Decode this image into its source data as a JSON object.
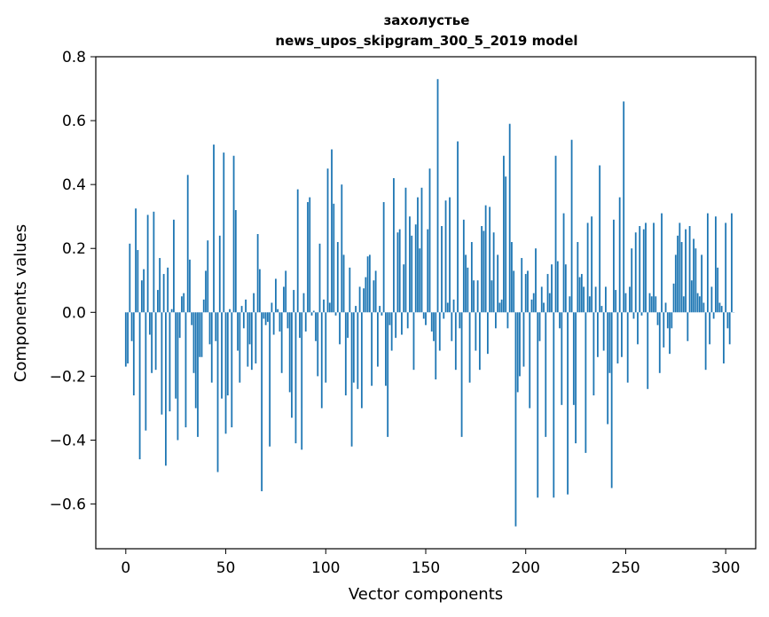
{
  "chart_data": {
    "type": "bar",
    "title": "захолустье",
    "subtitle": "news_upos_skipgram_300_5_2019 model",
    "xlabel": "Vector components",
    "ylabel": "Components values",
    "xlim": [
      -15,
      315
    ],
    "ylim": [
      -0.74,
      0.8
    ],
    "xticks": [
      0,
      50,
      100,
      150,
      200,
      250,
      300
    ],
    "yticks": [
      -0.6,
      -0.4,
      -0.2,
      0.0,
      0.2,
      0.4,
      0.6,
      0.8
    ],
    "xtick_labels": [
      "0",
      "50",
      "100",
      "150",
      "200",
      "250",
      "300"
    ],
    "ytick_labels": [
      "−0.6",
      "−0.4",
      "−0.2",
      "0.0",
      "0.2",
      "0.4",
      "0.6",
      "0.8"
    ],
    "grid": false,
    "bar_color": "#1f77b4",
    "values": [
      -0.17,
      -0.16,
      0.215,
      -0.09,
      -0.26,
      0.325,
      0.195,
      -0.46,
      0.1,
      0.135,
      -0.37,
      0.305,
      -0.07,
      -0.19,
      0.315,
      -0.18,
      0.07,
      0.17,
      -0.32,
      0.12,
      -0.48,
      0.14,
      -0.31,
      0.01,
      0.29,
      -0.27,
      -0.4,
      -0.08,
      0.05,
      0.06,
      -0.36,
      0.43,
      0.165,
      -0.04,
      -0.19,
      -0.3,
      -0.39,
      -0.14,
      -0.14,
      0.04,
      0.13,
      0.225,
      -0.1,
      -0.22,
      0.525,
      -0.09,
      -0.5,
      0.24,
      -0.27,
      0.5,
      -0.38,
      -0.26,
      0.01,
      -0.36,
      0.49,
      0.32,
      -0.12,
      -0.22,
      0.02,
      -0.05,
      0.04,
      -0.17,
      -0.1,
      -0.18,
      0.06,
      -0.16,
      0.245,
      0.135,
      -0.56,
      -0.02,
      -0.04,
      -0.03,
      -0.42,
      0.03,
      -0.07,
      0.105,
      0.01,
      -0.06,
      -0.19,
      0.08,
      0.13,
      -0.05,
      -0.25,
      -0.33,
      0.07,
      -0.41,
      0.385,
      -0.08,
      -0.43,
      0.06,
      -0.06,
      0.345,
      0.36,
      -0.01,
      0.005,
      -0.09,
      -0.2,
      0.215,
      -0.3,
      0.04,
      -0.22,
      0.45,
      0.03,
      0.51,
      0.34,
      -0.01,
      0.22,
      -0.1,
      0.4,
      0.18,
      -0.26,
      -0.08,
      0.14,
      -0.42,
      -0.22,
      0.02,
      -0.24,
      0.08,
      -0.3,
      0.075,
      0.11,
      0.175,
      0.18,
      -0.23,
      0.1,
      0.13,
      -0.17,
      0.02,
      -0.01,
      0.345,
      -0.23,
      -0.39,
      -0.04,
      -0.12,
      0.42,
      -0.08,
      0.25,
      0.26,
      -0.07,
      0.15,
      0.39,
      -0.05,
      0.3,
      0.24,
      -0.18,
      0.275,
      0.36,
      0.2,
      0.39,
      -0.02,
      -0.04,
      0.26,
      0.45,
      -0.06,
      -0.09,
      -0.21,
      0.73,
      -0.12,
      0.27,
      -0.02,
      0.35,
      0.03,
      0.36,
      -0.09,
      0.04,
      -0.18,
      0.535,
      -0.05,
      -0.39,
      0.29,
      0.18,
      0.14,
      -0.22,
      0.22,
      0.1,
      -0.12,
      0.1,
      -0.18,
      0.27,
      0.255,
      0.335,
      -0.13,
      0.33,
      0.1,
      0.25,
      -0.05,
      0.18,
      0.03,
      0.04,
      0.49,
      0.425,
      -0.05,
      0.59,
      0.22,
      0.13,
      -0.67,
      -0.25,
      -0.2,
      0.17,
      -0.17,
      0.12,
      0.13,
      -0.3,
      0.04,
      0.06,
      0.2,
      -0.58,
      -0.09,
      0.08,
      0.03,
      -0.39,
      0.12,
      0.06,
      0.15,
      -0.58,
      0.49,
      0.16,
      -0.05,
      -0.29,
      0.31,
      0.15,
      -0.57,
      0.05,
      0.54,
      -0.29,
      -0.41,
      0.22,
      0.11,
      0.12,
      0.08,
      -0.44,
      0.28,
      0.05,
      0.3,
      -0.26,
      0.08,
      -0.14,
      0.46,
      0.02,
      -0.12,
      0.08,
      -0.35,
      -0.19,
      -0.55,
      0.29,
      0.07,
      -0.16,
      0.36,
      -0.14,
      0.66,
      0.06,
      -0.22,
      0.08,
      0.2,
      -0.02,
      0.25,
      -0.1,
      0.27,
      -0.01,
      0.26,
      0.28,
      -0.24,
      0.06,
      0.05,
      0.28,
      0.05,
      -0.04,
      -0.19,
      0.31,
      -0.11,
      0.03,
      -0.05,
      -0.13,
      -0.05,
      0.09,
      0.18,
      0.24,
      0.28,
      0.22,
      0.05,
      0.26,
      -0.09,
      0.27,
      0.1,
      0.23,
      0.2,
      0.06,
      0.05,
      0.18,
      0.03,
      -0.18,
      0.31,
      -0.1,
      0.08,
      -0.02,
      0.3,
      0.14,
      0.03,
      0.02,
      -0.16,
      0.28,
      -0.05,
      -0.1,
      0.31,
      0.0
    ]
  }
}
